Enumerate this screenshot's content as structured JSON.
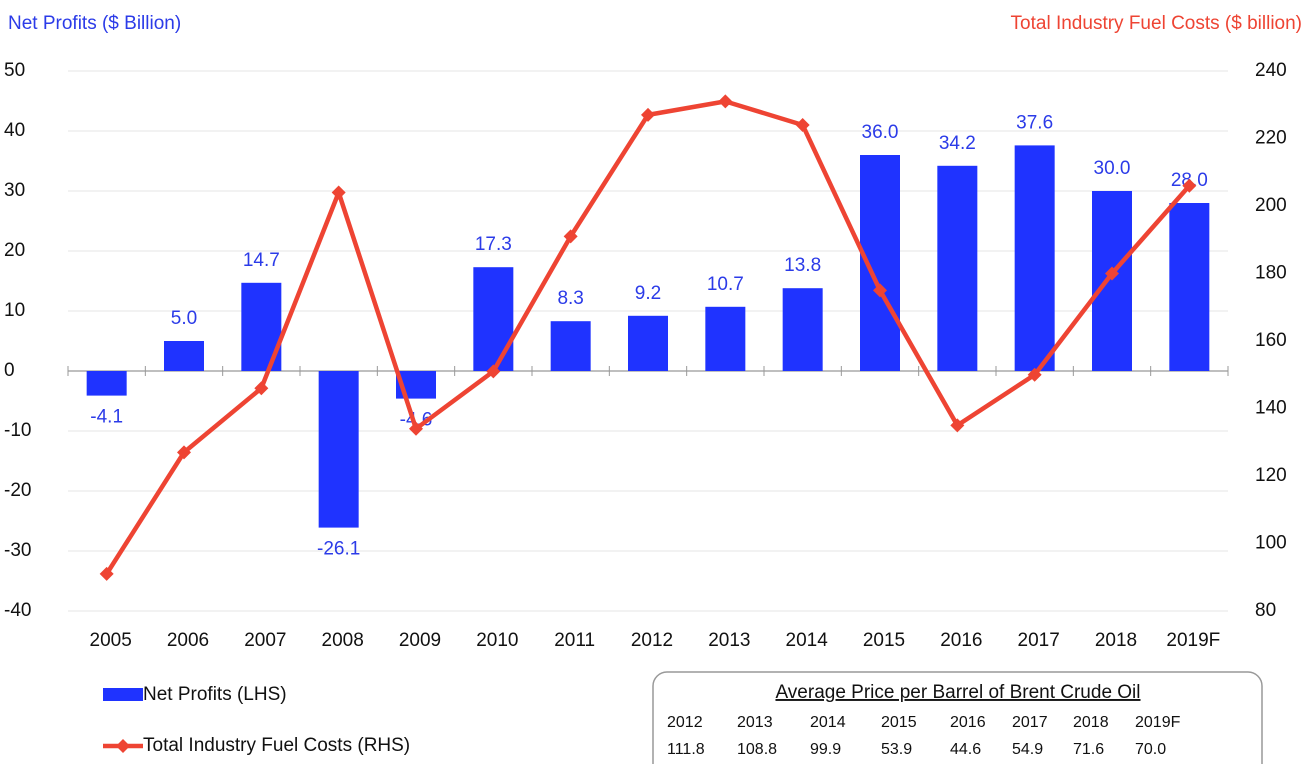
{
  "chart_data": {
    "type": "combo",
    "y_label": "Net Profits ($ Billion)",
    "y2_label": "Total Industry Fuel Costs ($ billion)",
    "categories": [
      "2005",
      "2006",
      "2007",
      "2008",
      "2009",
      "2010",
      "2011",
      "2012",
      "2013",
      "2014",
      "2015",
      "2016",
      "2017",
      "2018",
      "2019F"
    ],
    "series": [
      {
        "name": "Net Profits (LHS)",
        "type": "bar",
        "color": "#1f33ff",
        "values": [
          -4.1,
          5.0,
          14.7,
          -26.1,
          -4.6,
          17.3,
          8.3,
          9.2,
          10.7,
          13.8,
          36.0,
          34.2,
          37.6,
          30.0,
          28.0
        ],
        "value_labels": [
          "-4.1",
          "5.0",
          "14.7",
          "-26.1",
          "-4.6",
          "17.3",
          "8.3",
          "9.2",
          "10.7",
          "13.8",
          "36.0",
          "34.2",
          "37.6",
          "30.0",
          "28.0"
        ]
      },
      {
        "name": "Total Industry Fuel Costs (RHS)",
        "type": "line",
        "axis": "y2",
        "color": "#ee4433",
        "values": [
          91,
          127,
          146,
          204,
          134,
          151,
          191,
          227,
          231,
          224,
          175,
          135,
          150,
          180,
          206
        ]
      }
    ],
    "ylim": [
      -40,
      50
    ],
    "yticks": [
      -40,
      -30,
      -20,
      -10,
      0,
      10,
      20,
      30,
      40,
      50
    ],
    "y2lim": [
      80,
      240
    ],
    "y2ticks": [
      80,
      100,
      120,
      140,
      160,
      180,
      200,
      220,
      240
    ],
    "grid": true,
    "legend": "bottom-left",
    "table": {
      "title": "Average Price per Barrel of Brent Crude Oil",
      "columns": [
        "2012",
        "2013",
        "2014",
        "2015",
        "2016",
        "2017",
        "2018",
        "2019F"
      ],
      "values": [
        "111.8",
        "108.8",
        "99.9",
        "53.9",
        "44.6",
        "54.9",
        "71.6",
        "70.0"
      ]
    }
  }
}
